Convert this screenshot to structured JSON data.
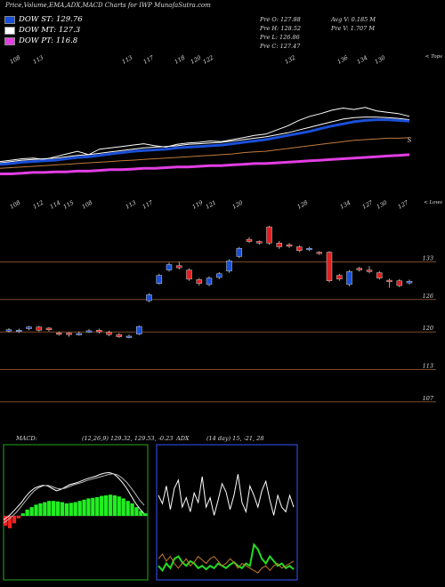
{
  "header": {
    "title": "Price,Volume,EMA,ADX,MACD Charts for IWP MunafaSutra.com"
  },
  "legend": {
    "items": [
      {
        "label": "DOW ST: 129.76",
        "color": "#1a4fd8"
      },
      {
        "label": "DOW MT: 127.3",
        "color": "#ffffff"
      },
      {
        "label": "DOW PT: 116.8",
        "color": "#e23ee2"
      }
    ]
  },
  "quote": {
    "open": "Pre O: 127.88",
    "high": "Pre H: 128.52",
    "low": "Pre L: 126.86",
    "close": "Pre C: 127.47",
    "avg_volume": "Avg V: 0.185 M",
    "volume": "Pre V: 1.707 M"
  },
  "chart_data": [
    {
      "type": "line",
      "name": "ema-panel",
      "top_tick_labels": [
        "108",
        "113",
        "113",
        "117",
        "118",
        "120",
        "122",
        "132",
        "136",
        "134",
        "130"
      ],
      "corner_label": "< Tops",
      "signal_label": "S",
      "series": [
        {
          "color": "#ffffff",
          "values": [
            0.2,
            0.22,
            0.24,
            0.25,
            0.23,
            0.27,
            0.31,
            0.35,
            0.3,
            0.38,
            0.4,
            0.42,
            0.44,
            0.46,
            0.43,
            0.41,
            0.45,
            0.47,
            0.48,
            0.5,
            0.49,
            0.52,
            0.55,
            0.58,
            0.6,
            0.66,
            0.72,
            0.8,
            0.86,
            0.9,
            0.95,
            0.98,
            0.96,
            0.99,
            0.94,
            0.92,
            0.9,
            0.86
          ]
        },
        {
          "color": "#ffffff",
          "values": [
            0.18,
            0.2,
            0.22,
            0.23,
            0.24,
            0.25,
            0.27,
            0.29,
            0.3,
            0.32,
            0.34,
            0.36,
            0.38,
            0.4,
            0.41,
            0.42,
            0.43,
            0.45,
            0.46,
            0.47,
            0.48,
            0.5,
            0.52,
            0.54,
            0.56,
            0.59,
            0.62,
            0.66,
            0.7,
            0.74,
            0.78,
            0.82,
            0.84,
            0.85,
            0.85,
            0.84,
            0.83,
            0.81
          ]
        },
        {
          "color": "#1a4fd8",
          "values": [
            0.16,
            0.17,
            0.19,
            0.2,
            0.21,
            0.22,
            0.24,
            0.26,
            0.27,
            0.29,
            0.31,
            0.33,
            0.35,
            0.36,
            0.37,
            0.38,
            0.4,
            0.41,
            0.42,
            0.43,
            0.44,
            0.46,
            0.48,
            0.5,
            0.52,
            0.55,
            0.58,
            0.61,
            0.64,
            0.68,
            0.72,
            0.75,
            0.78,
            0.8,
            0.81,
            0.81,
            0.8,
            0.79
          ]
        },
        {
          "color": "#c07a3c",
          "values": [
            0.1,
            0.11,
            0.12,
            0.13,
            0.14,
            0.15,
            0.16,
            0.17,
            0.18,
            0.19,
            0.2,
            0.21,
            0.22,
            0.23,
            0.24,
            0.25,
            0.26,
            0.27,
            0.28,
            0.29,
            0.3,
            0.31,
            0.33,
            0.34,
            0.35,
            0.37,
            0.39,
            0.41,
            0.43,
            0.45,
            0.47,
            0.49,
            0.51,
            0.52,
            0.53,
            0.54,
            0.54,
            0.55
          ]
        },
        {
          "color": "#e23ee2",
          "values": [
            0.02,
            0.02,
            0.03,
            0.04,
            0.04,
            0.05,
            0.05,
            0.06,
            0.06,
            0.07,
            0.08,
            0.08,
            0.09,
            0.1,
            0.1,
            0.11,
            0.12,
            0.12,
            0.13,
            0.14,
            0.14,
            0.15,
            0.16,
            0.17,
            0.17,
            0.18,
            0.19,
            0.2,
            0.21,
            0.22,
            0.23,
            0.24,
            0.25,
            0.26,
            0.27,
            0.28,
            0.29,
            0.3
          ]
        }
      ]
    },
    {
      "type": "bar",
      "name": "price-candles",
      "top_tick_labels": [
        "108",
        "112",
        "114",
        "115",
        "108",
        "113",
        "117",
        "119",
        "121",
        "120",
        "128",
        "134",
        "127",
        "130",
        "127"
      ],
      "corner_label": "< Lows",
      "y_axis_labels": [
        "133",
        "126",
        "120",
        "113",
        "107"
      ],
      "ylim": [
        104,
        142
      ],
      "candles": [
        {
          "o": 120.2,
          "c": 120.4,
          "h": 120.7,
          "l": 119.9,
          "color": "#1a4fd8"
        },
        {
          "o": 120.1,
          "c": 120.3,
          "h": 120.6,
          "l": 119.8,
          "color": "#1a4fd8"
        },
        {
          "o": 120.6,
          "c": 120.9,
          "h": 121.1,
          "l": 120.3,
          "color": "#1a4fd8"
        },
        {
          "o": 120.9,
          "c": 120.3,
          "h": 121.1,
          "l": 120.1,
          "color": "#e02020"
        },
        {
          "o": 120.7,
          "c": 120.4,
          "h": 120.9,
          "l": 120.1,
          "color": "#e02020"
        },
        {
          "o": 119.8,
          "c": 119.6,
          "h": 120.1,
          "l": 119.3,
          "color": "#e02020"
        },
        {
          "o": 119.8,
          "c": 119.5,
          "h": 120.0,
          "l": 119.1,
          "color": "#e02020"
        },
        {
          "o": 119.6,
          "c": 119.7,
          "h": 120.1,
          "l": 119.3,
          "color": "#1a4fd8"
        },
        {
          "o": 120.0,
          "c": 120.2,
          "h": 120.5,
          "l": 119.8,
          "color": "#1a4fd8"
        },
        {
          "o": 120.3,
          "c": 120.0,
          "h": 120.6,
          "l": 119.7,
          "color": "#e02020"
        },
        {
          "o": 119.9,
          "c": 119.5,
          "h": 120.2,
          "l": 119.2,
          "color": "#e02020"
        },
        {
          "o": 119.5,
          "c": 119.1,
          "h": 119.8,
          "l": 118.9,
          "color": "#e02020"
        },
        {
          "o": 119.0,
          "c": 119.2,
          "h": 119.5,
          "l": 118.8,
          "color": "#1a4fd8"
        },
        {
          "o": 119.6,
          "c": 121.0,
          "h": 121.2,
          "l": 119.4,
          "color": "#1a4fd8"
        },
        {
          "o": 125.8,
          "c": 126.9,
          "h": 127.2,
          "l": 125.5,
          "color": "#1a4fd8"
        },
        {
          "o": 129.0,
          "c": 130.5,
          "h": 130.8,
          "l": 128.8,
          "color": "#1a4fd8"
        },
        {
          "o": 131.5,
          "c": 132.5,
          "h": 132.9,
          "l": 131.2,
          "color": "#1a4fd8"
        },
        {
          "o": 132.3,
          "c": 131.9,
          "h": 133.0,
          "l": 131.6,
          "color": "#e02020"
        },
        {
          "o": 131.5,
          "c": 129.8,
          "h": 131.8,
          "l": 129.5,
          "color": "#e02020"
        },
        {
          "o": 129.7,
          "c": 129.0,
          "h": 130.0,
          "l": 128.6,
          "color": "#e02020"
        },
        {
          "o": 128.8,
          "c": 130.0,
          "h": 130.3,
          "l": 128.5,
          "color": "#1a4fd8"
        },
        {
          "o": 130.1,
          "c": 130.8,
          "h": 131.1,
          "l": 129.8,
          "color": "#1a4fd8"
        },
        {
          "o": 131.3,
          "c": 133.2,
          "h": 133.5,
          "l": 131.0,
          "color": "#1a4fd8"
        },
        {
          "o": 134.0,
          "c": 135.5,
          "h": 135.8,
          "l": 133.7,
          "color": "#1a4fd8"
        },
        {
          "o": 137.2,
          "c": 136.8,
          "h": 137.6,
          "l": 136.5,
          "color": "#e02020"
        },
        {
          "o": 136.8,
          "c": 136.5,
          "h": 137.0,
          "l": 136.2,
          "color": "#e02020"
        },
        {
          "o": 139.5,
          "c": 136.5,
          "h": 139.7,
          "l": 136.2,
          "color": "#e02020"
        },
        {
          "o": 136.5,
          "c": 135.8,
          "h": 136.9,
          "l": 135.4,
          "color": "#e02020"
        },
        {
          "o": 136.2,
          "c": 135.9,
          "h": 136.5,
          "l": 135.6,
          "color": "#e02020"
        },
        {
          "o": 135.8,
          "c": 135.1,
          "h": 136.1,
          "l": 134.8,
          "color": "#e02020"
        },
        {
          "o": 135.3,
          "c": 135.5,
          "h": 135.8,
          "l": 135.0,
          "color": "#1a4fd8"
        },
        {
          "o": 134.8,
          "c": 134.6,
          "h": 135.0,
          "l": 134.3,
          "color": "#e02020"
        },
        {
          "o": 134.8,
          "c": 129.5,
          "h": 135.0,
          "l": 129.2,
          "color": "#e02020"
        },
        {
          "o": 130.5,
          "c": 129.8,
          "h": 130.8,
          "l": 129.5,
          "color": "#e02020"
        },
        {
          "o": 128.8,
          "c": 131.2,
          "h": 131.5,
          "l": 128.5,
          "color": "#1a4fd8"
        },
        {
          "o": 131.8,
          "c": 131.5,
          "h": 132.1,
          "l": 131.2,
          "color": "#e02020"
        },
        {
          "o": 131.5,
          "c": 131.2,
          "h": 132.2,
          "l": 130.9,
          "color": "#e02020"
        },
        {
          "o": 131.0,
          "c": 130.0,
          "h": 131.3,
          "l": 129.7,
          "color": "#e02020"
        },
        {
          "o": 129.6,
          "c": 129.4,
          "h": 129.9,
          "l": 128.2,
          "color": "#e02020"
        },
        {
          "o": 129.5,
          "c": 128.6,
          "h": 129.8,
          "l": 128.3,
          "color": "#e02020"
        },
        {
          "o": 129.1,
          "c": 129.4,
          "h": 129.7,
          "l": 128.8,
          "color": "#1a4fd8"
        }
      ]
    },
    {
      "type": "line",
      "name": "macd-panel",
      "label": "MACD:",
      "params": "(12,26,9) 129.32, 129.53, -0.23",
      "histogram": [
        -0.4,
        -0.5,
        -0.3,
        -0.1,
        0.1,
        0.25,
        0.35,
        0.45,
        0.5,
        0.55,
        0.6,
        0.6,
        0.58,
        0.55,
        0.5,
        0.52,
        0.55,
        0.6,
        0.65,
        0.7,
        0.72,
        0.75,
        0.8,
        0.82,
        0.85,
        0.82,
        0.78,
        0.7,
        0.6,
        0.5,
        0.35,
        0.2,
        0.1
      ],
      "series": [
        {
          "color": "#ffffff",
          "values": [
            0.2,
            0.25,
            0.32,
            0.4,
            0.48,
            0.58,
            0.66,
            0.72,
            0.75,
            0.77,
            0.76,
            0.72,
            0.68,
            0.7,
            0.74,
            0.78,
            0.8,
            0.82,
            0.85,
            0.88,
            0.9,
            0.92,
            0.95,
            0.97,
            0.98,
            0.96,
            0.9,
            0.82,
            0.72,
            0.6,
            0.48,
            0.38,
            0.3
          ]
        },
        {
          "color": "#bbbbbb",
          "values": [
            0.15,
            0.2,
            0.26,
            0.33,
            0.42,
            0.51,
            0.6,
            0.68,
            0.73,
            0.76,
            0.77,
            0.75,
            0.72,
            0.71,
            0.72,
            0.75,
            0.78,
            0.8,
            0.82,
            0.85,
            0.87,
            0.89,
            0.91,
            0.93,
            0.95,
            0.96,
            0.94,
            0.89,
            0.82,
            0.73,
            0.63,
            0.52,
            0.44
          ]
        }
      ]
    },
    {
      "type": "line",
      "name": "adx-panel",
      "label": "ADX",
      "params": "(14 day) 15, -21, 28",
      "series": [
        {
          "color": "#ffffff",
          "values": [
            0.72,
            0.65,
            0.8,
            0.6,
            0.78,
            0.85,
            0.62,
            0.7,
            0.58,
            0.74,
            0.66,
            0.88,
            0.62,
            0.7,
            0.55,
            0.68,
            0.82,
            0.75,
            0.6,
            0.72,
            0.9,
            0.66,
            0.58,
            0.8,
            0.72,
            0.62,
            0.76,
            0.84,
            0.68,
            0.55,
            0.72,
            0.62,
            0.58,
            0.72,
            0.62
          ]
        },
        {
          "color": "#22dd22",
          "values": [
            0.12,
            0.08,
            0.14,
            0.1,
            0.18,
            0.2,
            0.15,
            0.12,
            0.16,
            0.14,
            0.1,
            0.12,
            0.09,
            0.12,
            0.1,
            0.14,
            0.12,
            0.1,
            0.13,
            0.15,
            0.12,
            0.1,
            0.14,
            0.12,
            0.3,
            0.26,
            0.18,
            0.14,
            0.2,
            0.16,
            0.12,
            0.14,
            0.1,
            0.12,
            0.09
          ]
        },
        {
          "color": "#c77a2a",
          "values": [
            0.18,
            0.22,
            0.16,
            0.2,
            0.14,
            0.1,
            0.14,
            0.18,
            0.12,
            0.15,
            0.2,
            0.17,
            0.14,
            0.18,
            0.2,
            0.16,
            0.12,
            0.14,
            0.18,
            0.15,
            0.1,
            0.14,
            0.12,
            0.1,
            0.08,
            0.06,
            0.1,
            0.12,
            0.08,
            0.12,
            0.14,
            0.1,
            0.12,
            0.14,
            0.16
          ]
        }
      ]
    }
  ]
}
